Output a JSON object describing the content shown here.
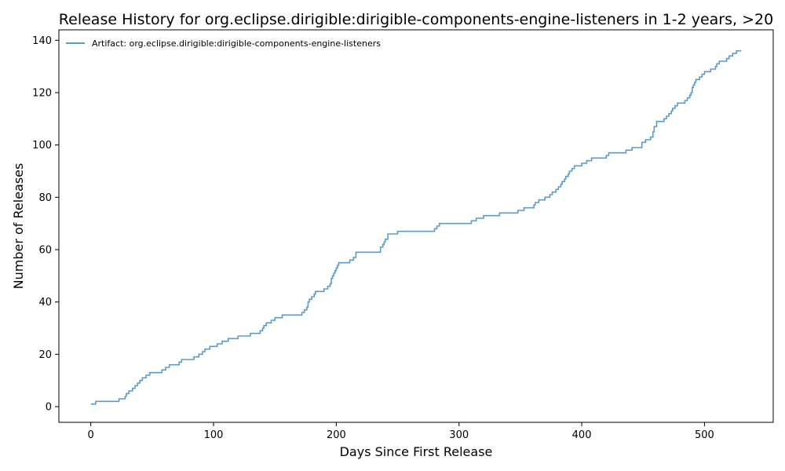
{
  "chart_data": {
    "type": "line",
    "title": "Release History for org.eclipse.dirigible:dirigible-components-engine-listeners in 1-2 years, >20",
    "xlabel": "Days Since First Release",
    "ylabel": "Number of Releases",
    "xlim": [
      -26,
      556
    ],
    "ylim": [
      -6,
      144
    ],
    "xticks": [
      0,
      100,
      200,
      300,
      400,
      500
    ],
    "yticks": [
      0,
      20,
      40,
      60,
      80,
      100,
      120,
      140
    ],
    "grid": false,
    "legend_position": "top-left",
    "step": true,
    "series": [
      {
        "name": "Artifact: org.eclipse.dirigible:dirigible-components-engine-listeners",
        "color": "#5b9bc9",
        "x": [
          0,
          4,
          23,
          28,
          29,
          31,
          34,
          36,
          38,
          40,
          42,
          45,
          48,
          58,
          61,
          64,
          72,
          74,
          84,
          88,
          91,
          93,
          97,
          103,
          107,
          112,
          120,
          130,
          138,
          140,
          141,
          143,
          147,
          150,
          156,
          160,
          172,
          174,
          176,
          177,
          178,
          180,
          182,
          183,
          190,
          193,
          195,
          196,
          197,
          198,
          199,
          200,
          201,
          202,
          211,
          214,
          216,
          236,
          238,
          239,
          240,
          242,
          250,
          258,
          280,
          282,
          284,
          286,
          310,
          314,
          320,
          333,
          348,
          353,
          356,
          361,
          362,
          365,
          370,
          374,
          376,
          379,
          381,
          383,
          384,
          386,
          387,
          389,
          390,
          392,
          394,
          400,
          404,
          408,
          420,
          422,
          436,
          441,
          449,
          452,
          456,
          458,
          459,
          461,
          467,
          469,
          471,
          473,
          474,
          476,
          478,
          484,
          486,
          488,
          489,
          490,
          491,
          492,
          493,
          496,
          498,
          500,
          505,
          509,
          510,
          512,
          518,
          520,
          523,
          526,
          530
        ],
        "y": [
          1,
          2,
          3,
          4,
          5,
          6,
          7,
          8,
          9,
          10,
          11,
          12,
          13,
          14,
          15,
          16,
          17,
          18,
          19,
          20,
          21,
          22,
          23,
          24,
          25,
          26,
          27,
          28,
          29,
          30,
          31,
          32,
          33,
          34,
          35,
          35,
          36,
          37,
          38,
          40,
          41,
          42,
          43,
          44,
          45,
          46,
          47,
          49,
          50,
          51,
          52,
          53,
          54,
          55,
          56,
          57,
          59,
          61,
          62,
          63,
          64,
          66,
          67,
          67,
          68,
          69,
          70,
          70,
          71,
          72,
          73,
          74,
          75,
          76,
          76,
          77,
          78,
          79,
          80,
          81,
          82,
          83,
          84,
          85,
          86,
          87,
          88,
          89,
          90,
          91,
          92,
          93,
          94,
          95,
          96,
          97,
          98,
          99,
          101,
          102,
          103,
          105,
          107,
          109,
          110,
          111,
          112,
          113,
          114,
          115,
          116,
          117,
          118,
          119,
          120,
          122,
          123,
          124,
          125,
          126,
          127,
          128,
          129,
          130,
          131,
          132,
          133,
          134,
          135,
          136,
          136
        ]
      }
    ]
  }
}
